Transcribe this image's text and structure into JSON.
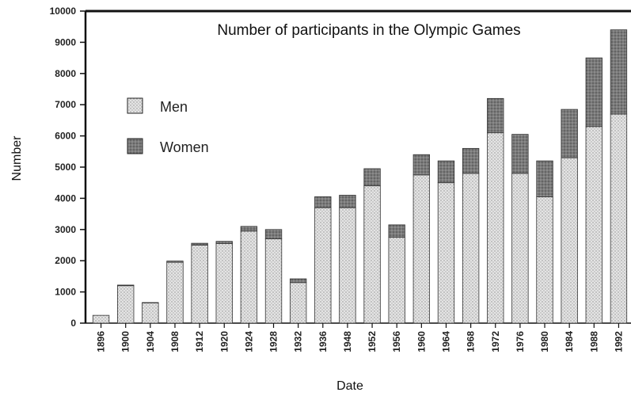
{
  "chart_data": {
    "type": "bar",
    "stacked": true,
    "title": "Number of participants in the Olympic Games",
    "xlabel": "Date",
    "ylabel": "Number",
    "ylim": [
      0,
      10000
    ],
    "yticks": [
      0,
      1000,
      2000,
      3000,
      4000,
      5000,
      6000,
      7000,
      8000,
      9000,
      10000
    ],
    "categories": [
      "1896",
      "1900",
      "1904",
      "1908",
      "1912",
      "1920",
      "1924",
      "1928",
      "1932",
      "1936",
      "1948",
      "1952",
      "1956",
      "1960",
      "1964",
      "1968",
      "1972",
      "1976",
      "1980",
      "1984",
      "1988",
      "1992"
    ],
    "series": [
      {
        "name": "Men",
        "color": "#d9d9d9",
        "values": [
          250,
          1200,
          650,
          1950,
          2500,
          2550,
          2950,
          2700,
          1300,
          3700,
          3700,
          4400,
          2750,
          4750,
          4500,
          4800,
          6100,
          4800,
          4050,
          5300,
          6300,
          6700
        ]
      },
      {
        "name": "Women",
        "color": "#8a8a8a",
        "values": [
          0,
          20,
          10,
          40,
          60,
          70,
          150,
          300,
          120,
          350,
          400,
          550,
          400,
          650,
          700,
          800,
          1100,
          1250,
          1150,
          1550,
          2200,
          2700
        ]
      }
    ],
    "legend_position": "upper-left",
    "grid": false
  }
}
